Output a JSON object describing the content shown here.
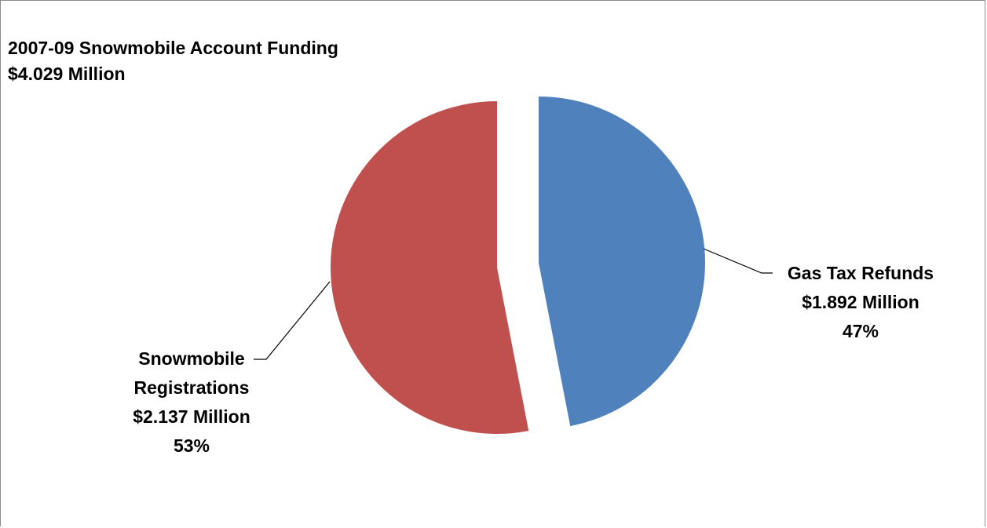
{
  "chart_data": {
    "type": "pie",
    "title": "2007-09 Snowmobile Account Funding",
    "subtitle": "$4.029 Million",
    "slices": [
      {
        "category": "Gas Tax Refunds",
        "value": 1.892,
        "value_label": "$1.892 Million",
        "percent_label": "47%",
        "color": "#4f81bd"
      },
      {
        "category": "Snowmobile Registrations",
        "value": 2.137,
        "value_label": "$2.137 Million",
        "percent_label": "53%",
        "color": "#c0504d"
      }
    ],
    "label_lines": [
      [
        "Gas Tax Refunds",
        "$1.892 Million",
        "47%"
      ],
      [
        "Snowmobile",
        "Registrations",
        "$2.137 Million",
        "53%"
      ]
    ],
    "legend": "none",
    "exploded": true
  }
}
